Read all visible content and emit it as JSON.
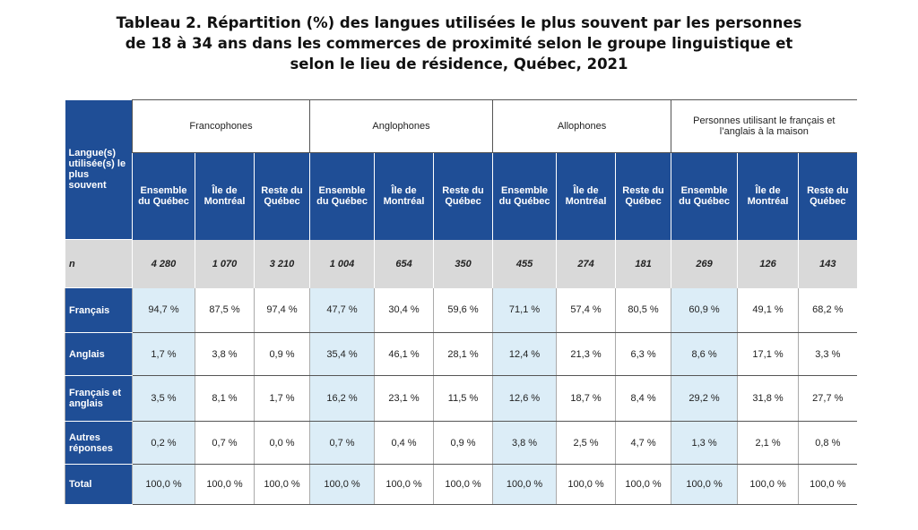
{
  "title": [
    "Tableau 2. Répartition (%) des langues utilisées le plus souvent par les personnes",
    "de 18 à 34 ans dans les commerces de proximité selon le groupe linguistique et",
    "selon le lieu de résidence, Québec, 2021"
  ],
  "table": {
    "corner": "Langue(s) utilisée(s) le plus souvent",
    "groups": [
      "Francophones",
      "Anglophones",
      "Allophones",
      "Personnes utilisant le français et l’anglais à la maison"
    ],
    "subheaders": [
      "Ensemble du Québec",
      "Île de Montréal",
      "Reste du Québec",
      "Ensemble du Québec",
      "Île de Montréal",
      "Reste du Québec",
      "Ensemble du Québec",
      "Île de Montréal",
      "Reste du Québec",
      "Ensemble du Québec",
      "Île de Montréal",
      "Reste du Québec"
    ],
    "rows": [
      {
        "label": "n",
        "cells": [
          "4 280",
          "1 070",
          "3 210",
          "1 004",
          "654",
          "350",
          "455",
          "274",
          "181",
          "269",
          "126",
          "143"
        ]
      },
      {
        "label": "Français",
        "cells": [
          "94,7 %",
          "87,5 %",
          "97,4 %",
          "47,7 %",
          "30,4 %",
          "59,6 %",
          "71,1 %",
          "57,4 %",
          "80,5 %",
          "60,9 %",
          "49,1 %",
          "68,2 %"
        ]
      },
      {
        "label": "Anglais",
        "cells": [
          "1,7 %",
          "3,8 %",
          "0,9 %",
          "35,4 %",
          "46,1 %",
          "28,1 %",
          "12,4 %",
          "21,3 %",
          "6,3 %",
          "8,6 %",
          "17,1 %",
          "3,3 %"
        ]
      },
      {
        "label": "Français et anglais",
        "cells": [
          "3,5 %",
          "8,1 %",
          "1,7 %",
          "16,2 %",
          "23,1 %",
          "11,5 %",
          "12,6 %",
          "18,7 %",
          "8,4 %",
          "29,2 %",
          "31,8 %",
          "27,7 %"
        ]
      },
      {
        "label": "Autres réponses",
        "cells": [
          "0,2 %",
          "0,7 %",
          "0,0 %",
          "0,7 %",
          "0,4 %",
          "0,9 %",
          "3,8 %",
          "2,5 %",
          "4,7 %",
          "1,3 %",
          "2,1 %",
          "0,8 %"
        ]
      },
      {
        "label": "Total",
        "cells": [
          "100,0 %",
          "100,0 %",
          "100,0 %",
          "100,0 %",
          "100,0 %",
          "100,0 %",
          "100,0 %",
          "100,0 %",
          "100,0 %",
          "100,0 %",
          "100,0 %",
          "100,0 %"
        ]
      }
    ]
  }
}
